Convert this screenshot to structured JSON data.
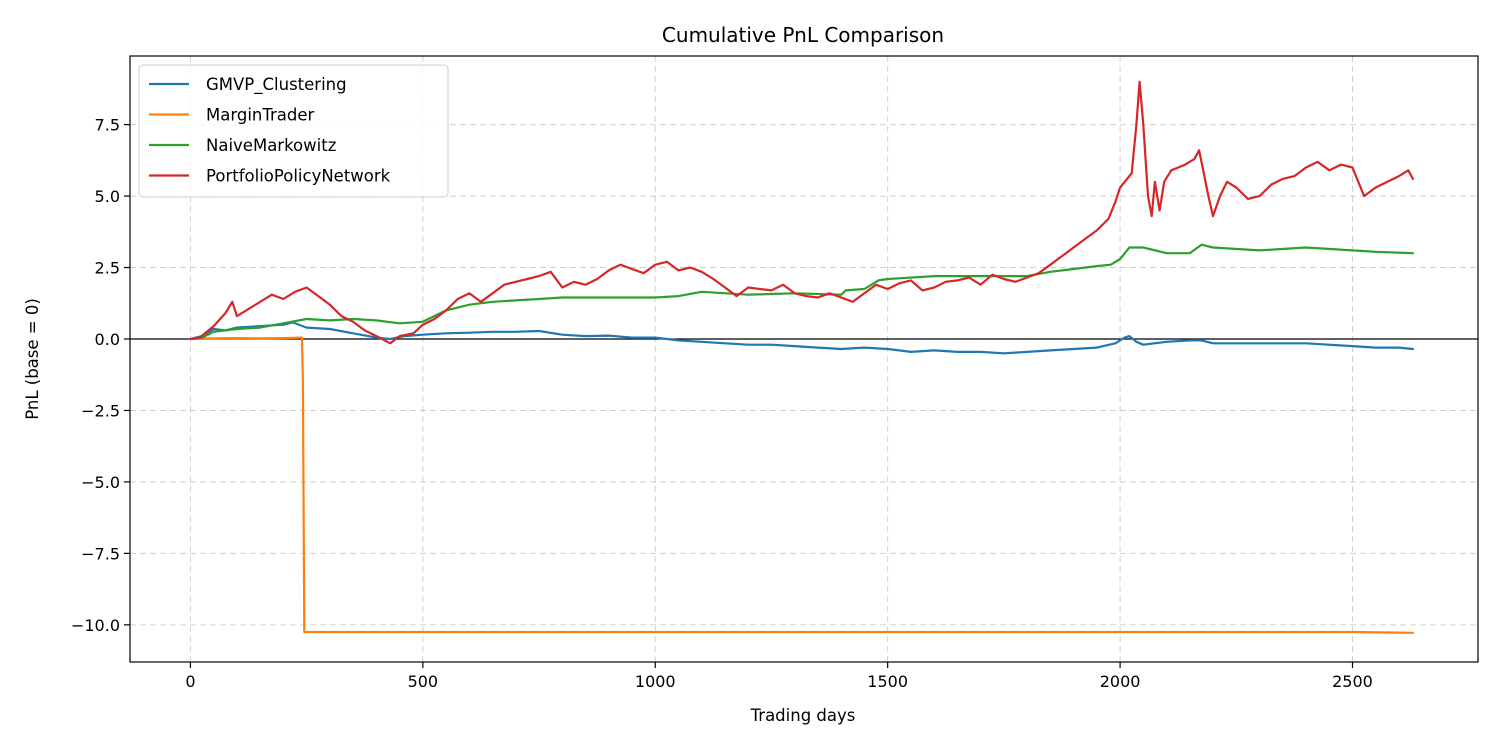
{
  "chart_data": {
    "type": "line",
    "title": "Cumulative PnL Comparison",
    "xlabel": "Trading days",
    "ylabel": "PnL (base = 0)",
    "xlim": [
      -130,
      2770
    ],
    "ylim": [
      -11.3,
      9.9
    ],
    "xticks": [
      0,
      500,
      1000,
      1500,
      2000,
      2500
    ],
    "xtick_labels": [
      "0",
      "500",
      "1000",
      "1500",
      "2000",
      "2500"
    ],
    "yticks": [
      7.5,
      5.0,
      2.5,
      0.0,
      -2.5,
      -5.0,
      -7.5,
      -10.0
    ],
    "ytick_labels": [
      "7.5",
      "5.0",
      "2.5",
      "0.0",
      "−2.5",
      "−5.0",
      "−7.5",
      "−10.0"
    ],
    "grid": true,
    "zero_line": true,
    "legend_position": "top-left",
    "series": [
      {
        "name": "GMVP_Clustering",
        "color": "#1f77b4",
        "points": [
          [
            0,
            0
          ],
          [
            25,
            0.1
          ],
          [
            50,
            0.35
          ],
          [
            75,
            0.3
          ],
          [
            100,
            0.4
          ],
          [
            150,
            0.45
          ],
          [
            200,
            0.5
          ],
          [
            220,
            0.58
          ],
          [
            250,
            0.4
          ],
          [
            300,
            0.35
          ],
          [
            350,
            0.2
          ],
          [
            400,
            0.05
          ],
          [
            430,
            0.0
          ],
          [
            460,
            0.1
          ],
          [
            500,
            0.15
          ],
          [
            550,
            0.2
          ],
          [
            600,
            0.22
          ],
          [
            650,
            0.25
          ],
          [
            700,
            0.25
          ],
          [
            750,
            0.28
          ],
          [
            800,
            0.15
          ],
          [
            850,
            0.1
          ],
          [
            900,
            0.12
          ],
          [
            950,
            0.05
          ],
          [
            1000,
            0.05
          ],
          [
            1050,
            -0.05
          ],
          [
            1100,
            -0.1
          ],
          [
            1150,
            -0.15
          ],
          [
            1200,
            -0.2
          ],
          [
            1250,
            -0.2
          ],
          [
            1300,
            -0.25
          ],
          [
            1350,
            -0.3
          ],
          [
            1400,
            -0.35
          ],
          [
            1450,
            -0.3
          ],
          [
            1500,
            -0.35
          ],
          [
            1550,
            -0.45
          ],
          [
            1600,
            -0.4
          ],
          [
            1650,
            -0.45
          ],
          [
            1700,
            -0.45
          ],
          [
            1750,
            -0.5
          ],
          [
            1800,
            -0.45
          ],
          [
            1850,
            -0.4
          ],
          [
            1900,
            -0.35
          ],
          [
            1950,
            -0.3
          ],
          [
            1990,
            -0.15
          ],
          [
            2010,
            0.05
          ],
          [
            2020,
            0.1
          ],
          [
            2035,
            -0.1
          ],
          [
            2050,
            -0.2
          ],
          [
            2100,
            -0.1
          ],
          [
            2150,
            -0.05
          ],
          [
            2175,
            -0.05
          ],
          [
            2200,
            -0.15
          ],
          [
            2300,
            -0.15
          ],
          [
            2400,
            -0.15
          ],
          [
            2500,
            -0.25
          ],
          [
            2550,
            -0.3
          ],
          [
            2600,
            -0.3
          ],
          [
            2630,
            -0.35
          ]
        ]
      },
      {
        "name": "MarginTrader",
        "color": "#ff7f0e",
        "points": [
          [
            0,
            0
          ],
          [
            50,
            0.02
          ],
          [
            100,
            0.03
          ],
          [
            150,
            0.02
          ],
          [
            200,
            0.03
          ],
          [
            240,
            0.05
          ],
          [
            242,
            -1.5
          ],
          [
            245,
            -10.25
          ],
          [
            300,
            -10.25
          ],
          [
            500,
            -10.25
          ],
          [
            1000,
            -10.25
          ],
          [
            1500,
            -10.25
          ],
          [
            2000,
            -10.25
          ],
          [
            2500,
            -10.25
          ],
          [
            2630,
            -10.28
          ]
        ]
      },
      {
        "name": "NaiveMarkowitz",
        "color": "#2ca02c",
        "points": [
          [
            0,
            0
          ],
          [
            25,
            0.05
          ],
          [
            50,
            0.25
          ],
          [
            100,
            0.35
          ],
          [
            150,
            0.4
          ],
          [
            200,
            0.55
          ],
          [
            250,
            0.7
          ],
          [
            300,
            0.65
          ],
          [
            350,
            0.7
          ],
          [
            400,
            0.65
          ],
          [
            450,
            0.55
          ],
          [
            500,
            0.6
          ],
          [
            550,
            1.0
          ],
          [
            600,
            1.2
          ],
          [
            650,
            1.3
          ],
          [
            700,
            1.35
          ],
          [
            750,
            1.4
          ],
          [
            800,
            1.45
          ],
          [
            900,
            1.45
          ],
          [
            1000,
            1.45
          ],
          [
            1050,
            1.5
          ],
          [
            1100,
            1.65
          ],
          [
            1200,
            1.55
          ],
          [
            1300,
            1.6
          ],
          [
            1400,
            1.55
          ],
          [
            1410,
            1.7
          ],
          [
            1450,
            1.75
          ],
          [
            1480,
            2.05
          ],
          [
            1500,
            2.1
          ],
          [
            1600,
            2.2
          ],
          [
            1700,
            2.2
          ],
          [
            1800,
            2.2
          ],
          [
            1850,
            2.35
          ],
          [
            1900,
            2.45
          ],
          [
            1950,
            2.55
          ],
          [
            1980,
            2.6
          ],
          [
            2000,
            2.8
          ],
          [
            2020,
            3.2
          ],
          [
            2050,
            3.2
          ],
          [
            2100,
            3.0
          ],
          [
            2150,
            3.0
          ],
          [
            2175,
            3.3
          ],
          [
            2200,
            3.2
          ],
          [
            2300,
            3.1
          ],
          [
            2400,
            3.2
          ],
          [
            2500,
            3.1
          ],
          [
            2550,
            3.05
          ],
          [
            2630,
            3.0
          ]
        ]
      },
      {
        "name": "PortfolioPolicyNetwork",
        "color": "#d62728",
        "points": [
          [
            0,
            0
          ],
          [
            20,
            0.05
          ],
          [
            50,
            0.45
          ],
          [
            75,
            0.9
          ],
          [
            90,
            1.3
          ],
          [
            100,
            0.8
          ],
          [
            120,
            1.0
          ],
          [
            150,
            1.3
          ],
          [
            175,
            1.55
          ],
          [
            200,
            1.4
          ],
          [
            225,
            1.65
          ],
          [
            250,
            1.8
          ],
          [
            275,
            1.5
          ],
          [
            300,
            1.2
          ],
          [
            325,
            0.8
          ],
          [
            350,
            0.6
          ],
          [
            375,
            0.3
          ],
          [
            400,
            0.1
          ],
          [
            430,
            -0.15
          ],
          [
            450,
            0.1
          ],
          [
            480,
            0.2
          ],
          [
            500,
            0.5
          ],
          [
            525,
            0.7
          ],
          [
            550,
            1.0
          ],
          [
            575,
            1.4
          ],
          [
            600,
            1.6
          ],
          [
            625,
            1.3
          ],
          [
            650,
            1.6
          ],
          [
            675,
            1.9
          ],
          [
            700,
            2.0
          ],
          [
            725,
            2.1
          ],
          [
            750,
            2.2
          ],
          [
            775,
            2.35
          ],
          [
            800,
            1.8
          ],
          [
            825,
            2.0
          ],
          [
            850,
            1.9
          ],
          [
            875,
            2.1
          ],
          [
            900,
            2.4
          ],
          [
            925,
            2.6
          ],
          [
            950,
            2.45
          ],
          [
            975,
            2.3
          ],
          [
            1000,
            2.6
          ],
          [
            1025,
            2.7
          ],
          [
            1050,
            2.4
          ],
          [
            1075,
            2.5
          ],
          [
            1100,
            2.35
          ],
          [
            1125,
            2.1
          ],
          [
            1150,
            1.8
          ],
          [
            1175,
            1.5
          ],
          [
            1200,
            1.8
          ],
          [
            1225,
            1.75
          ],
          [
            1250,
            1.7
          ],
          [
            1275,
            1.9
          ],
          [
            1300,
            1.6
          ],
          [
            1325,
            1.5
          ],
          [
            1350,
            1.45
          ],
          [
            1375,
            1.6
          ],
          [
            1400,
            1.45
          ],
          [
            1425,
            1.3
          ],
          [
            1450,
            1.6
          ],
          [
            1475,
            1.9
          ],
          [
            1500,
            1.75
          ],
          [
            1525,
            1.95
          ],
          [
            1550,
            2.05
          ],
          [
            1575,
            1.7
          ],
          [
            1600,
            1.8
          ],
          [
            1625,
            2.0
          ],
          [
            1650,
            2.05
          ],
          [
            1675,
            2.15
          ],
          [
            1700,
            1.9
          ],
          [
            1725,
            2.25
          ],
          [
            1750,
            2.1
          ],
          [
            1775,
            2.0
          ],
          [
            1800,
            2.15
          ],
          [
            1825,
            2.3
          ],
          [
            1850,
            2.6
          ],
          [
            1875,
            2.9
          ],
          [
            1900,
            3.2
          ],
          [
            1925,
            3.5
          ],
          [
            1950,
            3.8
          ],
          [
            1975,
            4.2
          ],
          [
            1990,
            4.8
          ],
          [
            2000,
            5.3
          ],
          [
            2015,
            5.6
          ],
          [
            2025,
            5.8
          ],
          [
            2035,
            7.5
          ],
          [
            2042,
            9.0
          ],
          [
            2050,
            7.5
          ],
          [
            2060,
            5.0
          ],
          [
            2068,
            4.3
          ],
          [
            2075,
            5.5
          ],
          [
            2085,
            4.5
          ],
          [
            2095,
            5.5
          ],
          [
            2110,
            5.9
          ],
          [
            2125,
            6.0
          ],
          [
            2140,
            6.1
          ],
          [
            2160,
            6.3
          ],
          [
            2170,
            6.6
          ],
          [
            2180,
            5.8
          ],
          [
            2190,
            5.0
          ],
          [
            2200,
            4.3
          ],
          [
            2215,
            5.0
          ],
          [
            2230,
            5.5
          ],
          [
            2250,
            5.3
          ],
          [
            2275,
            4.9
          ],
          [
            2300,
            5.0
          ],
          [
            2325,
            5.4
          ],
          [
            2350,
            5.6
          ],
          [
            2375,
            5.7
          ],
          [
            2400,
            6.0
          ],
          [
            2425,
            6.2
          ],
          [
            2450,
            5.9
          ],
          [
            2475,
            6.1
          ],
          [
            2500,
            6.0
          ],
          [
            2525,
            5.0
          ],
          [
            2550,
            5.3
          ],
          [
            2575,
            5.5
          ],
          [
            2600,
            5.7
          ],
          [
            2620,
            5.9
          ],
          [
            2630,
            5.6
          ]
        ]
      }
    ]
  }
}
